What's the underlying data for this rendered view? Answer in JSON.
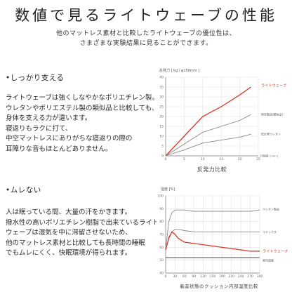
{
  "header": {
    "title": "数値で見るライトウェーブの性能",
    "intro_line1": "他のマットレス素材と比較したライトウェーブの優位性は、",
    "intro_line2": "さまざまな実験結果に見ることができます。"
  },
  "section1": {
    "heading": "•しっかり支える",
    "lines": [
      "ライトウェーブは強くしなやかなポリエチレン製。",
      "ウレタンやポリエステル製の類似品と比較しても、",
      "身体を支える力が違います。",
      "寝返りもラクに打て、",
      "中空マットレスにありがちな寝返りの際の",
      "耳障りな音もほとんどありません。"
    ]
  },
  "section2": {
    "heading": "•ムレない",
    "lines": [
      "人は眠っている間、大量の汗をかきます。",
      "撥水性の高いポリエチレン樹脂で出来ているライト",
      "ウェーブは湿気を中に滞留させないため、",
      "他のマットレス素材と比較しても長時間の睡眠",
      "でもムレにくく、快眠環境が得られます。"
    ]
  },
  "colors": {
    "accent": "#d9352b",
    "gray_line": "#8a8a8a",
    "dark_line": "#4a4a4a",
    "grid": "#e2e2e2"
  },
  "chart_data": [
    {
      "type": "line",
      "title": "反発力比較",
      "ylabel": "反発力 [ kg / φ150mm ]",
      "xlabel": "圧縮量 [ mm ]",
      "x_ticks": [
        "0",
        "5",
        "10",
        "15",
        "20",
        "25"
      ],
      "y_ticks": [
        "0",
        "5",
        "10",
        "15",
        "20",
        "25",
        "30",
        "35",
        "40"
      ],
      "xlim": [
        0,
        25
      ],
      "ylim": [
        0,
        40
      ],
      "x": [
        0,
        5,
        10,
        15,
        20,
        23
      ],
      "series": [
        {
          "name": "ライトウェーブ",
          "values": [
            0,
            10,
            20,
            25,
            31,
            35
          ],
          "color": "#d9352b"
        },
        {
          "name": "他社製品(類似品)",
          "values": [
            0,
            6,
            12,
            15,
            18,
            21
          ],
          "color": "#8a8a8a"
        },
        {
          "name": "低反発ウレタン",
          "values": [
            0,
            3,
            6.5,
            8,
            9.5,
            11
          ],
          "color": "#8a8a8a"
        }
      ],
      "legend": "right"
    },
    {
      "type": "line",
      "title": "着座状態のクッション内部湿度比較",
      "ylabel": "湿度 [%]",
      "x_ticks": [
        "0",
        "30",
        "60",
        "90",
        "120",
        "150",
        "180",
        "210",
        "240",
        "270",
        "300"
      ],
      "y_ticks": [
        "40",
        "50",
        "60",
        "70",
        "80",
        "90",
        "100"
      ],
      "xlim": [
        0,
        300
      ],
      "ylim": [
        40,
        100
      ],
      "x": [
        0,
        10,
        20,
        30,
        40,
        60,
        90,
        120,
        150,
        180,
        210,
        240,
        270,
        300
      ],
      "series": [
        {
          "name": "ウレタン製品",
          "values": [
            58,
            80,
            87,
            89,
            89,
            89,
            88,
            88,
            88,
            88,
            88,
            88,
            88,
            89
          ],
          "color": "#8a8a8a"
        },
        {
          "name": "ラテックス",
          "values": [
            58,
            68,
            72,
            74,
            74,
            73,
            72,
            72,
            72,
            72,
            72,
            72,
            72,
            72
          ],
          "color": "#8a8a8a"
        },
        {
          "name": "ライトウェーブ",
          "values": [
            58,
            67,
            72,
            70,
            67,
            64,
            63,
            62,
            61,
            60,
            59,
            58,
            57,
            57
          ],
          "color": "#d9352b"
        },
        {
          "name": "室内湿度",
          "values": [
            52,
            52,
            52,
            52,
            52,
            52,
            52,
            52,
            52,
            52,
            52,
            52,
            52,
            52
          ],
          "color": "#4a4a4a"
        }
      ],
      "legend": "right"
    }
  ]
}
